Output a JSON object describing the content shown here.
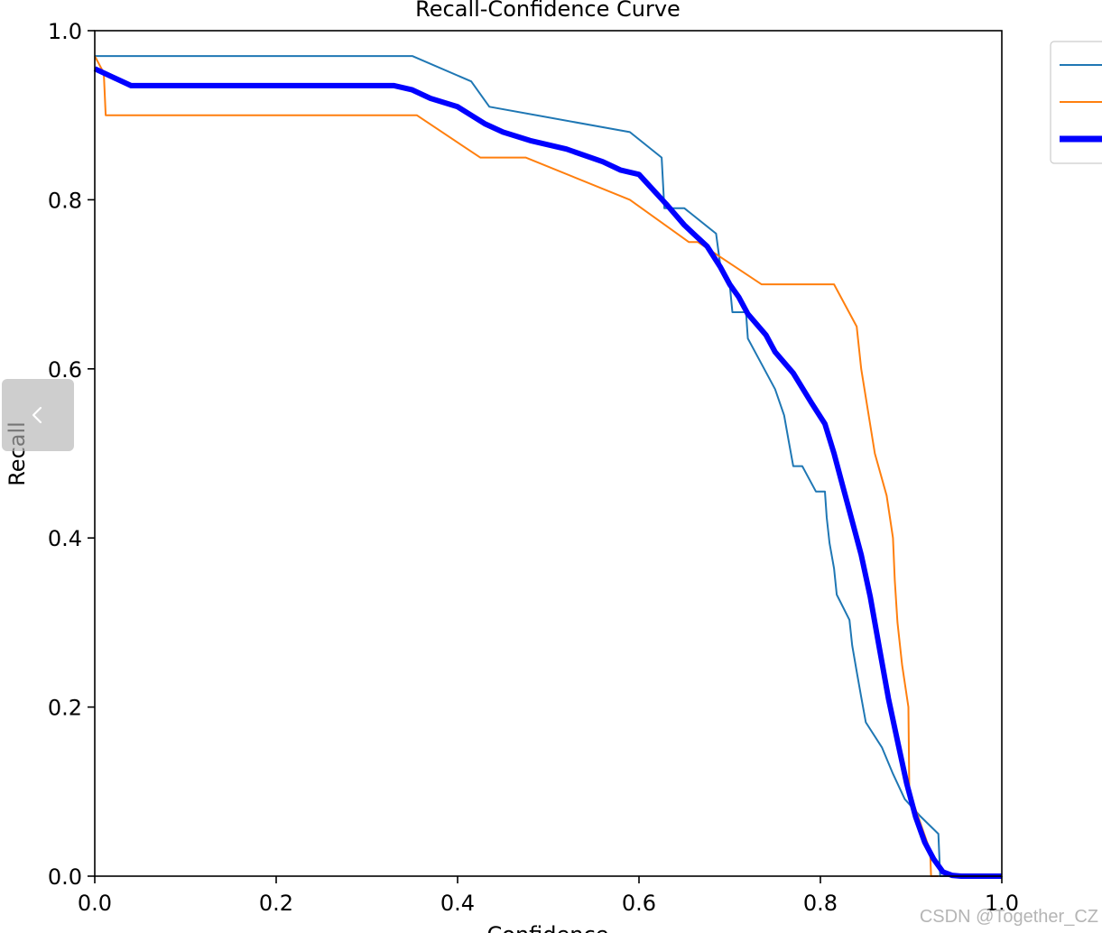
{
  "chart_data": {
    "type": "line",
    "title": "Recall-Confidence Curve",
    "xlabel": "Confidence",
    "ylabel": "Recall",
    "xlim": [
      0.0,
      1.0
    ],
    "ylim": [
      0.0,
      1.0
    ],
    "xticks": [
      "0.0",
      "0.2",
      "0.4",
      "0.6",
      "0.8",
      "1.0"
    ],
    "yticks": [
      "0.0",
      "0.2",
      "0.4",
      "0.6",
      "0.8",
      "1.0"
    ],
    "grid": false,
    "legend": "upper-right (entry text cut off)",
    "series": [
      {
        "color": "#1f77b4",
        "width": "thin",
        "x": [
          0.0,
          0.35,
          0.415,
          0.435,
          0.59,
          0.625,
          0.628,
          0.65,
          0.685,
          0.69,
          0.7,
          0.703,
          0.718,
          0.72,
          0.735,
          0.75,
          0.76,
          0.765,
          0.77,
          0.78,
          0.795,
          0.805,
          0.807,
          0.81,
          0.815,
          0.818,
          0.832,
          0.835,
          0.84,
          0.845,
          0.85,
          0.868,
          0.88,
          0.893,
          0.91,
          0.93,
          0.932,
          0.94,
          1.0
        ],
        "y": [
          0.97,
          0.97,
          0.94,
          0.91,
          0.88,
          0.85,
          0.79,
          0.79,
          0.76,
          0.72,
          0.7,
          0.667,
          0.667,
          0.636,
          0.606,
          0.576,
          0.545,
          0.515,
          0.485,
          0.485,
          0.455,
          0.455,
          0.424,
          0.394,
          0.364,
          0.333,
          0.303,
          0.273,
          0.242,
          0.212,
          0.182,
          0.152,
          0.121,
          0.091,
          0.071,
          0.05,
          0.0,
          0.0,
          0.0
        ]
      },
      {
        "color": "#ff7f0e",
        "width": "thin",
        "x": [
          0.0,
          0.01,
          0.012,
          0.355,
          0.425,
          0.475,
          0.59,
          0.655,
          0.665,
          0.735,
          0.815,
          0.84,
          0.845,
          0.86,
          0.873,
          0.88,
          0.882,
          0.885,
          0.89,
          0.897,
          0.898,
          0.921,
          0.922,
          0.93
        ],
        "y": [
          0.97,
          0.95,
          0.9,
          0.9,
          0.85,
          0.85,
          0.8,
          0.75,
          0.75,
          0.7,
          0.7,
          0.65,
          0.6,
          0.5,
          0.45,
          0.4,
          0.35,
          0.3,
          0.25,
          0.2,
          0.1,
          0.03,
          0.0,
          0.0
        ]
      },
      {
        "color": "#0000ff",
        "width": "thick",
        "x": [
          0.0,
          0.04,
          0.1,
          0.2,
          0.3,
          0.33,
          0.35,
          0.37,
          0.4,
          0.43,
          0.45,
          0.48,
          0.52,
          0.56,
          0.58,
          0.6,
          0.63,
          0.65,
          0.66,
          0.675,
          0.69,
          0.7,
          0.71,
          0.72,
          0.74,
          0.75,
          0.77,
          0.79,
          0.805,
          0.815,
          0.825,
          0.835,
          0.845,
          0.855,
          0.865,
          0.875,
          0.885,
          0.895,
          0.905,
          0.915,
          0.925,
          0.935,
          0.945,
          0.955,
          0.97,
          1.0
        ],
        "y": [
          0.955,
          0.935,
          0.935,
          0.935,
          0.935,
          0.935,
          0.93,
          0.92,
          0.91,
          0.89,
          0.88,
          0.87,
          0.86,
          0.845,
          0.835,
          0.83,
          0.795,
          0.77,
          0.76,
          0.745,
          0.72,
          0.7,
          0.685,
          0.665,
          0.64,
          0.62,
          0.595,
          0.56,
          0.535,
          0.5,
          0.46,
          0.42,
          0.38,
          0.33,
          0.27,
          0.21,
          0.16,
          0.11,
          0.07,
          0.04,
          0.02,
          0.005,
          0.001,
          0.0,
          0.0,
          0.0
        ]
      }
    ]
  },
  "watermark": "CSDN @Together_CZ"
}
